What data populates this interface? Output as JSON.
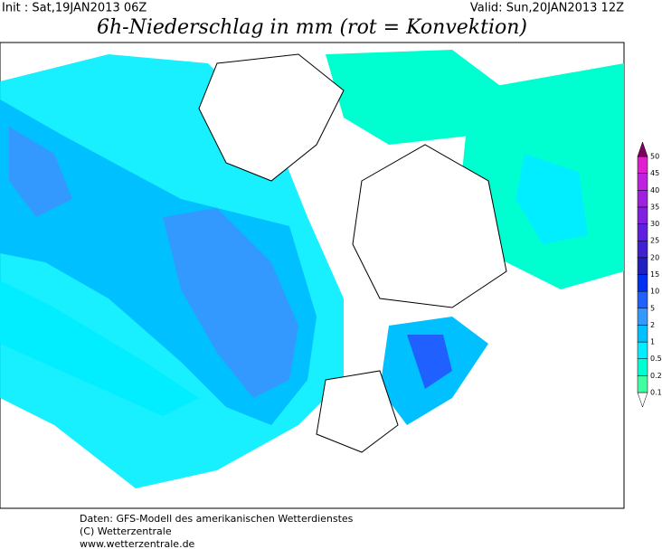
{
  "header": {
    "init": "Init : Sat,19JAN2013 06Z",
    "valid": "Valid: Sun,20JAN2013 12Z",
    "title": "6h-Niederschlag in mm (rot = Konvektion)"
  },
  "legend": {
    "labels": [
      0.1,
      0.2,
      0.5,
      1,
      2,
      5,
      10,
      15,
      20,
      25,
      30,
      35,
      40,
      45,
      50
    ],
    "colors": [
      "#40ffa0",
      "#00ffd0",
      "#00eeff",
      "#00c0ff",
      "#3399ff",
      "#2060ff",
      "#0030f0",
      "#2020c0",
      "#4020d0",
      "#6020e0",
      "#8020e0",
      "#a020e0",
      "#c020e0",
      "#e020d0",
      "#800060"
    ]
  },
  "footer": [
    "Daten: GFS-Modell des amerikanischen Wetterdienstes",
    "(C) Wetterzentrale",
    "www.wetterzentrale.de"
  ]
}
